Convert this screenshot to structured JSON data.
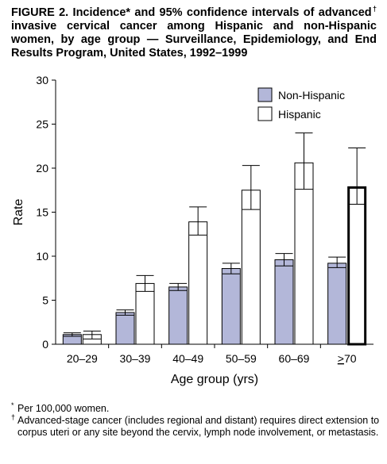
{
  "title": {
    "part1": "FIGURE 2. Incidence* and 95% confidence intervals of advanced",
    "dagger": "†",
    "part2": " invasive cervical cancer among Hispanic and non-Hispanic women, by age group — Surveillance, Epidemiology, and End Results Program, United States, 1992–1999"
  },
  "footnotes": {
    "star_mark": "*",
    "star_text": "Per 100,000 women.",
    "dagger_mark": "†",
    "dagger_text": "Advanced-stage cancer (includes regional and distant) requires direct extension to corpus uteri or any site beyond the cervix, lymph node involvement, or metastasis."
  },
  "colors": {
    "non_hispanic": "#b3b7d9",
    "hispanic": "#ffffff",
    "stroke": "#000000"
  },
  "chart_data": {
    "type": "bar",
    "xlabel": "Age group (yrs)",
    "ylabel": "Rate",
    "ylim": [
      0,
      30
    ],
    "yticks": [
      0,
      5,
      10,
      15,
      20,
      25,
      30
    ],
    "grid": false,
    "legend_position": "top-right",
    "categories": [
      "20–29",
      "30–39",
      "40–49",
      "50–59",
      "60–69",
      "≥70"
    ],
    "series": [
      {
        "name": "Non-Hispanic",
        "color": "#b3b7d9",
        "values": [
          1.1,
          3.6,
          6.5,
          8.6,
          9.6,
          9.2
        ],
        "ci_lower": [
          0.9,
          3.3,
          6.1,
          8.0,
          8.9,
          8.7
        ],
        "ci_upper": [
          1.3,
          3.9,
          6.9,
          9.2,
          10.3,
          9.9
        ]
      },
      {
        "name": "Hispanic",
        "color": "#ffffff",
        "values": [
          1.1,
          6.9,
          13.9,
          17.5,
          20.6,
          17.8
        ],
        "ci_lower": [
          0.6,
          6.0,
          12.4,
          15.3,
          17.6,
          15.9
        ],
        "ci_upper": [
          1.5,
          7.8,
          15.6,
          20.3,
          24.0,
          22.3
        ]
      }
    ],
    "emphasized": {
      "series": "Hispanic",
      "category": "≥70"
    }
  }
}
